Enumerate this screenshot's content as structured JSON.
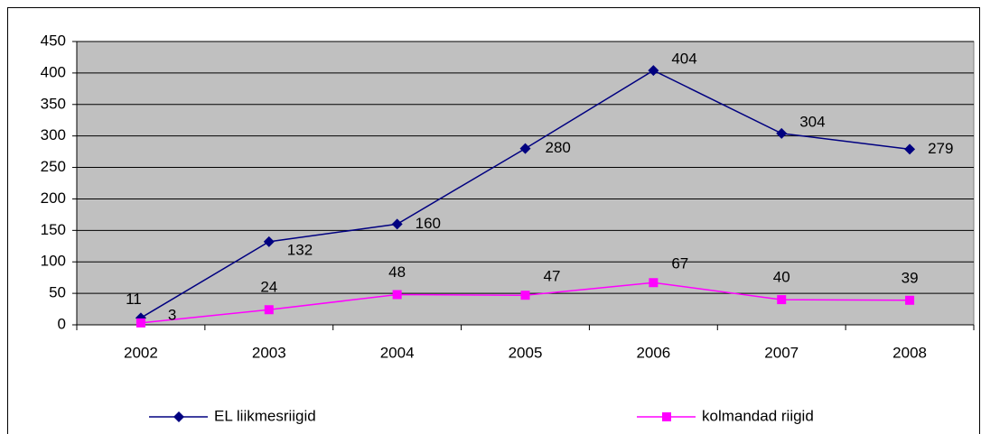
{
  "chart_data": {
    "type": "line",
    "categories": [
      "2002",
      "2003",
      "2004",
      "2005",
      "2006",
      "2007",
      "2008"
    ],
    "series": [
      {
        "name": "EL liikmesriigid",
        "color": "#000080",
        "marker": "diamond",
        "values": [
          11,
          132,
          160,
          280,
          404,
          304,
          279
        ]
      },
      {
        "name": "kolmandad riigid",
        "color": "#ff00ff",
        "marker": "square",
        "values": [
          3,
          24,
          48,
          47,
          67,
          40,
          39
        ]
      }
    ],
    "ylim": [
      0,
      450
    ],
    "yticks": [
      0,
      50,
      100,
      150,
      200,
      250,
      300,
      350,
      400,
      450
    ],
    "grid": true,
    "legend": "bottom"
  }
}
